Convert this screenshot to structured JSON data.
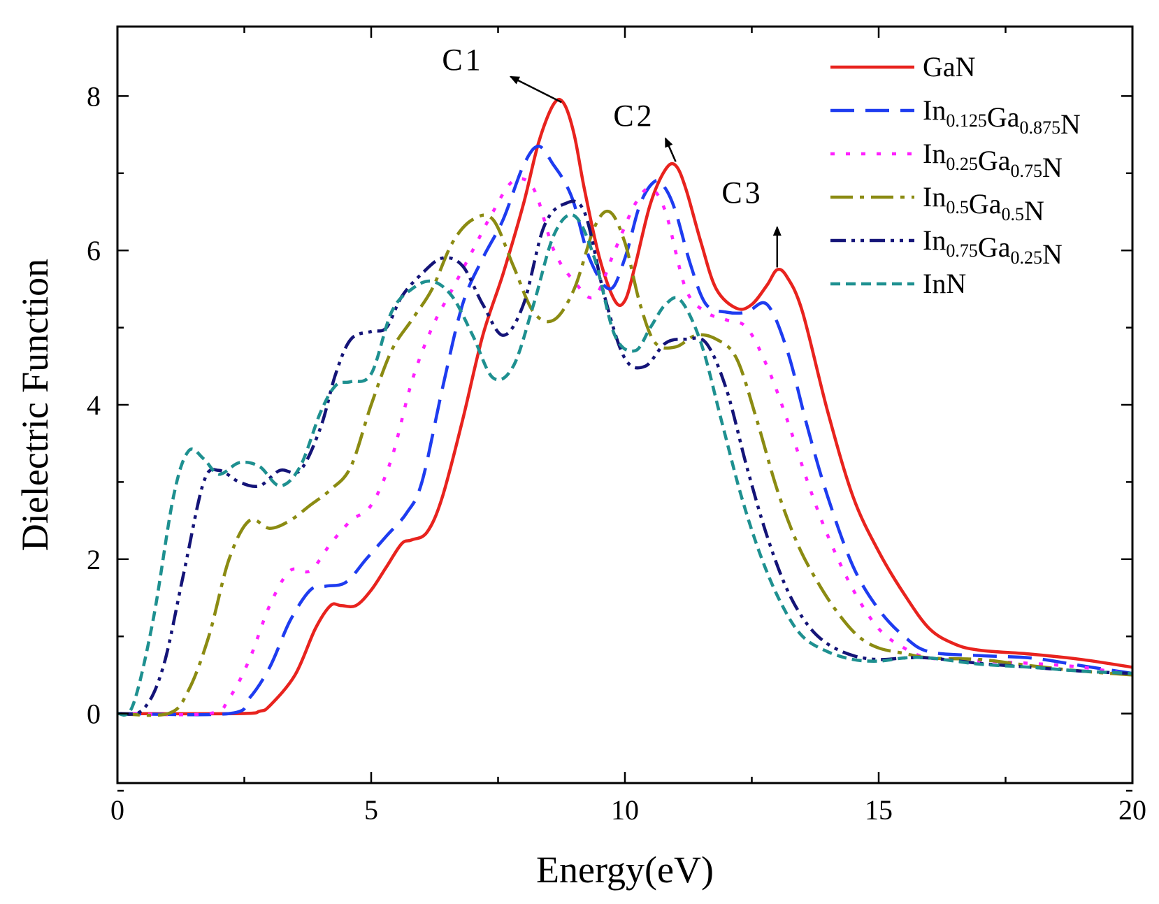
{
  "chart_data": {
    "type": "line",
    "title": "",
    "xlabel": "Energy(eV)",
    "ylabel": "Dielectric Function",
    "xlim": [
      0,
      20
    ],
    "ylim": [
      -0.9,
      8.9
    ],
    "xticks": [
      0,
      5,
      10,
      15,
      20
    ],
    "xtick_labels": [
      "0",
      "5",
      "10",
      "15",
      "20"
    ],
    "yticks": [
      0,
      2,
      4,
      6,
      8
    ],
    "ytick_labels": [
      "0",
      "2",
      "4",
      "6",
      "8"
    ],
    "grid": false,
    "legend_position": "top-right",
    "series": [
      {
        "name": "GaN",
        "legend": {
          "base": "GaN",
          "parts": []
        },
        "color": "#e8231e",
        "dash": "solid",
        "x": [
          0,
          2.4,
          2.8,
          3.0,
          3.5,
          3.9,
          4.2,
          4.4,
          4.7,
          5.0,
          5.3,
          5.6,
          5.8,
          6.1,
          6.4,
          6.8,
          7.2,
          7.6,
          8.0,
          8.3,
          8.6,
          8.8,
          9.0,
          9.2,
          9.5,
          9.8,
          10.0,
          10.2,
          10.5,
          10.8,
          11.0,
          11.2,
          11.5,
          11.8,
          12.2,
          12.5,
          12.8,
          13.0,
          13.2,
          13.5,
          14.0,
          14.5,
          15.0,
          15.5,
          16.0,
          16.5,
          17.0,
          18.0,
          19.0,
          20.0
        ],
        "values": [
          0,
          0,
          0.03,
          0.1,
          0.5,
          1.1,
          1.4,
          1.4,
          1.4,
          1.6,
          1.9,
          2.2,
          2.25,
          2.35,
          2.8,
          3.8,
          4.9,
          5.7,
          6.6,
          7.4,
          7.9,
          7.9,
          7.5,
          6.8,
          5.9,
          5.35,
          5.35,
          5.8,
          6.6,
          7.05,
          7.1,
          6.8,
          6.1,
          5.5,
          5.25,
          5.3,
          5.55,
          5.75,
          5.65,
          5.2,
          3.9,
          2.8,
          2.1,
          1.55,
          1.1,
          0.9,
          0.82,
          0.77,
          0.7,
          0.6
        ]
      },
      {
        "name": "In0.125Ga0.875N",
        "legend": {
          "base": "",
          "parts": [
            [
              "In",
              "0.125"
            ],
            [
              "Ga",
              "0.875"
            ],
            [
              "N",
              ""
            ]
          ]
        },
        "color": "#1e3cf0",
        "dash": "34 16",
        "x": [
          0,
          2.2,
          2.6,
          3.0,
          3.4,
          3.8,
          4.1,
          4.5,
          4.9,
          5.3,
          5.7,
          6.0,
          6.4,
          6.8,
          7.2,
          7.6,
          8.0,
          8.3,
          8.6,
          8.8,
          9.0,
          9.3,
          9.7,
          10.0,
          10.3,
          10.6,
          10.8,
          11.0,
          11.3,
          11.6,
          12.0,
          12.4,
          12.8,
          13.2,
          13.6,
          14.0,
          14.5,
          15.0,
          15.5,
          16.0,
          17.0,
          18.0,
          19.0,
          20.0
        ],
        "values": [
          0,
          0,
          0.2,
          0.6,
          1.2,
          1.6,
          1.65,
          1.7,
          2.0,
          2.3,
          2.6,
          3.0,
          4.2,
          5.3,
          5.9,
          6.4,
          7.1,
          7.35,
          7.1,
          6.9,
          6.6,
          5.9,
          5.5,
          5.9,
          6.6,
          6.9,
          6.8,
          6.5,
          5.8,
          5.3,
          5.2,
          5.2,
          5.3,
          4.7,
          3.7,
          2.8,
          1.9,
          1.35,
          1.0,
          0.8,
          0.75,
          0.72,
          0.62,
          0.52
        ]
      },
      {
        "name": "In0.25Ga0.75N",
        "legend": {
          "base": "",
          "parts": [
            [
              "In",
              "0.25"
            ],
            [
              "Ga",
              "0.75"
            ],
            [
              "N",
              ""
            ]
          ]
        },
        "color": "#ff20ff",
        "dash": "6 16",
        "x": [
          0,
          1.8,
          2.2,
          2.6,
          3.0,
          3.4,
          3.8,
          4.2,
          4.6,
          5.0,
          5.4,
          5.8,
          6.2,
          6.6,
          7.0,
          7.4,
          7.8,
          8.2,
          8.6,
          9.0,
          9.4,
          9.8,
          10.2,
          10.5,
          10.8,
          11.2,
          11.6,
          12.0,
          12.4,
          12.8,
          13.2,
          13.6,
          14.0,
          14.5,
          15.0,
          15.5,
          16.0,
          17.0,
          18.0,
          19.0,
          20.0
        ],
        "values": [
          0,
          0,
          0.2,
          0.7,
          1.4,
          1.85,
          1.85,
          2.2,
          2.5,
          2.7,
          3.3,
          4.3,
          5.0,
          5.5,
          6.0,
          6.5,
          6.9,
          6.8,
          6.0,
          5.6,
          5.4,
          6.0,
          6.6,
          6.8,
          6.5,
          5.5,
          5.2,
          5.1,
          5.0,
          4.5,
          3.8,
          3.0,
          2.3,
          1.6,
          1.1,
          0.85,
          0.72,
          0.68,
          0.65,
          0.6,
          0.5
        ]
      },
      {
        "name": "In0.5Ga0.5N",
        "legend": {
          "base": "",
          "parts": [
            [
              "In",
              "0.5"
            ],
            [
              "Ga",
              "0.5"
            ],
            [
              "N",
              ""
            ]
          ]
        },
        "color": "#8b8b12",
        "dash": "32 10 6 10",
        "x": [
          0,
          1.0,
          1.4,
          1.8,
          2.2,
          2.6,
          3.0,
          3.4,
          3.8,
          4.2,
          4.6,
          5.0,
          5.4,
          5.8,
          6.2,
          6.6,
          7.0,
          7.4,
          7.8,
          8.2,
          8.6,
          9.0,
          9.4,
          9.7,
          10.0,
          10.3,
          10.6,
          11.0,
          11.4,
          11.8,
          12.2,
          12.6,
          13.0,
          13.4,
          13.8,
          14.2,
          14.6,
          15.0,
          15.5,
          16.0,
          17.0,
          18.0,
          19.0,
          20.0
        ],
        "values": [
          0,
          0,
          0.3,
          1.0,
          2.0,
          2.5,
          2.4,
          2.5,
          2.7,
          2.9,
          3.2,
          4.0,
          4.7,
          5.1,
          5.5,
          6.1,
          6.4,
          6.4,
          5.8,
          5.2,
          5.1,
          5.5,
          6.3,
          6.5,
          6.1,
          5.3,
          4.8,
          4.75,
          4.9,
          4.85,
          4.6,
          3.8,
          2.9,
          2.2,
          1.7,
          1.3,
          1.0,
          0.85,
          0.78,
          0.72,
          0.7,
          0.62,
          0.55,
          0.5
        ]
      },
      {
        "name": "In0.75Ga0.25N",
        "legend": {
          "base": "",
          "parts": [
            [
              "In",
              "0.75"
            ],
            [
              "Ga",
              "0.25"
            ],
            [
              "N",
              ""
            ]
          ]
        },
        "color": "#141478",
        "dash": "22 8 5 8 5 8",
        "x": [
          0,
          0.5,
          0.9,
          1.3,
          1.7,
          2.0,
          2.4,
          2.8,
          3.2,
          3.6,
          4.0,
          4.3,
          4.6,
          5.0,
          5.3,
          5.6,
          6.0,
          6.4,
          6.8,
          7.2,
          7.6,
          8.0,
          8.4,
          8.8,
          9.2,
          9.6,
          10.0,
          10.4,
          10.8,
          11.2,
          11.6,
          12.0,
          12.4,
          12.8,
          13.2,
          13.6,
          14.0,
          14.5,
          15.0,
          15.5,
          16.0,
          17.0,
          18.0,
          19.0,
          20.0
        ],
        "values": [
          0,
          0.05,
          0.6,
          1.8,
          3.0,
          3.15,
          3.0,
          2.95,
          3.15,
          3.15,
          3.7,
          4.4,
          4.85,
          4.95,
          5.0,
          5.4,
          5.7,
          5.9,
          5.8,
          5.3,
          4.9,
          5.3,
          6.3,
          6.6,
          6.5,
          5.4,
          4.6,
          4.5,
          4.8,
          4.85,
          4.8,
          4.2,
          3.2,
          2.3,
          1.6,
          1.15,
          0.9,
          0.75,
          0.7,
          0.72,
          0.72,
          0.65,
          0.6,
          0.55,
          0.52
        ]
      },
      {
        "name": "InN",
        "legend": {
          "base": "InN",
          "parts": []
        },
        "color": "#1e9090",
        "dash": "14 8",
        "x": [
          0,
          0.3,
          0.7,
          1.1,
          1.4,
          1.7,
          2.0,
          2.4,
          2.8,
          3.2,
          3.6,
          4.0,
          4.3,
          4.6,
          5.0,
          5.4,
          5.8,
          6.2,
          6.6,
          7.0,
          7.4,
          7.8,
          8.2,
          8.6,
          9.0,
          9.4,
          9.8,
          10.2,
          10.5,
          10.8,
          11.1,
          11.5,
          11.9,
          12.3,
          12.7,
          13.1,
          13.5,
          14.0,
          14.5,
          15.0,
          15.5,
          16.0,
          17.0,
          18.0,
          19.0,
          20.0
        ],
        "values": [
          0,
          0.1,
          1.2,
          2.8,
          3.4,
          3.3,
          3.1,
          3.25,
          3.2,
          2.95,
          3.2,
          3.9,
          4.25,
          4.3,
          4.4,
          5.2,
          5.5,
          5.6,
          5.4,
          4.9,
          4.35,
          4.5,
          5.3,
          6.2,
          6.45,
          5.9,
          4.9,
          4.7,
          5.0,
          5.3,
          5.35,
          4.8,
          3.8,
          2.8,
          2.0,
          1.4,
          1.0,
          0.8,
          0.7,
          0.68,
          0.72,
          0.72,
          0.64,
          0.6,
          0.55,
          0.52
        ]
      }
    ],
    "annotations": [
      {
        "label": "C",
        "index": "1",
        "peak": [
          8.75,
          7.92
        ],
        "tip": [
          7.75,
          8.25
        ]
      },
      {
        "label": "C",
        "index": "2",
        "peak": [
          11.0,
          7.15
        ],
        "tip": [
          10.8,
          7.45
        ]
      },
      {
        "label": "C",
        "index": "3",
        "peak": [
          13.0,
          5.78
        ],
        "tip": [
          13.0,
          6.3
        ]
      }
    ]
  }
}
